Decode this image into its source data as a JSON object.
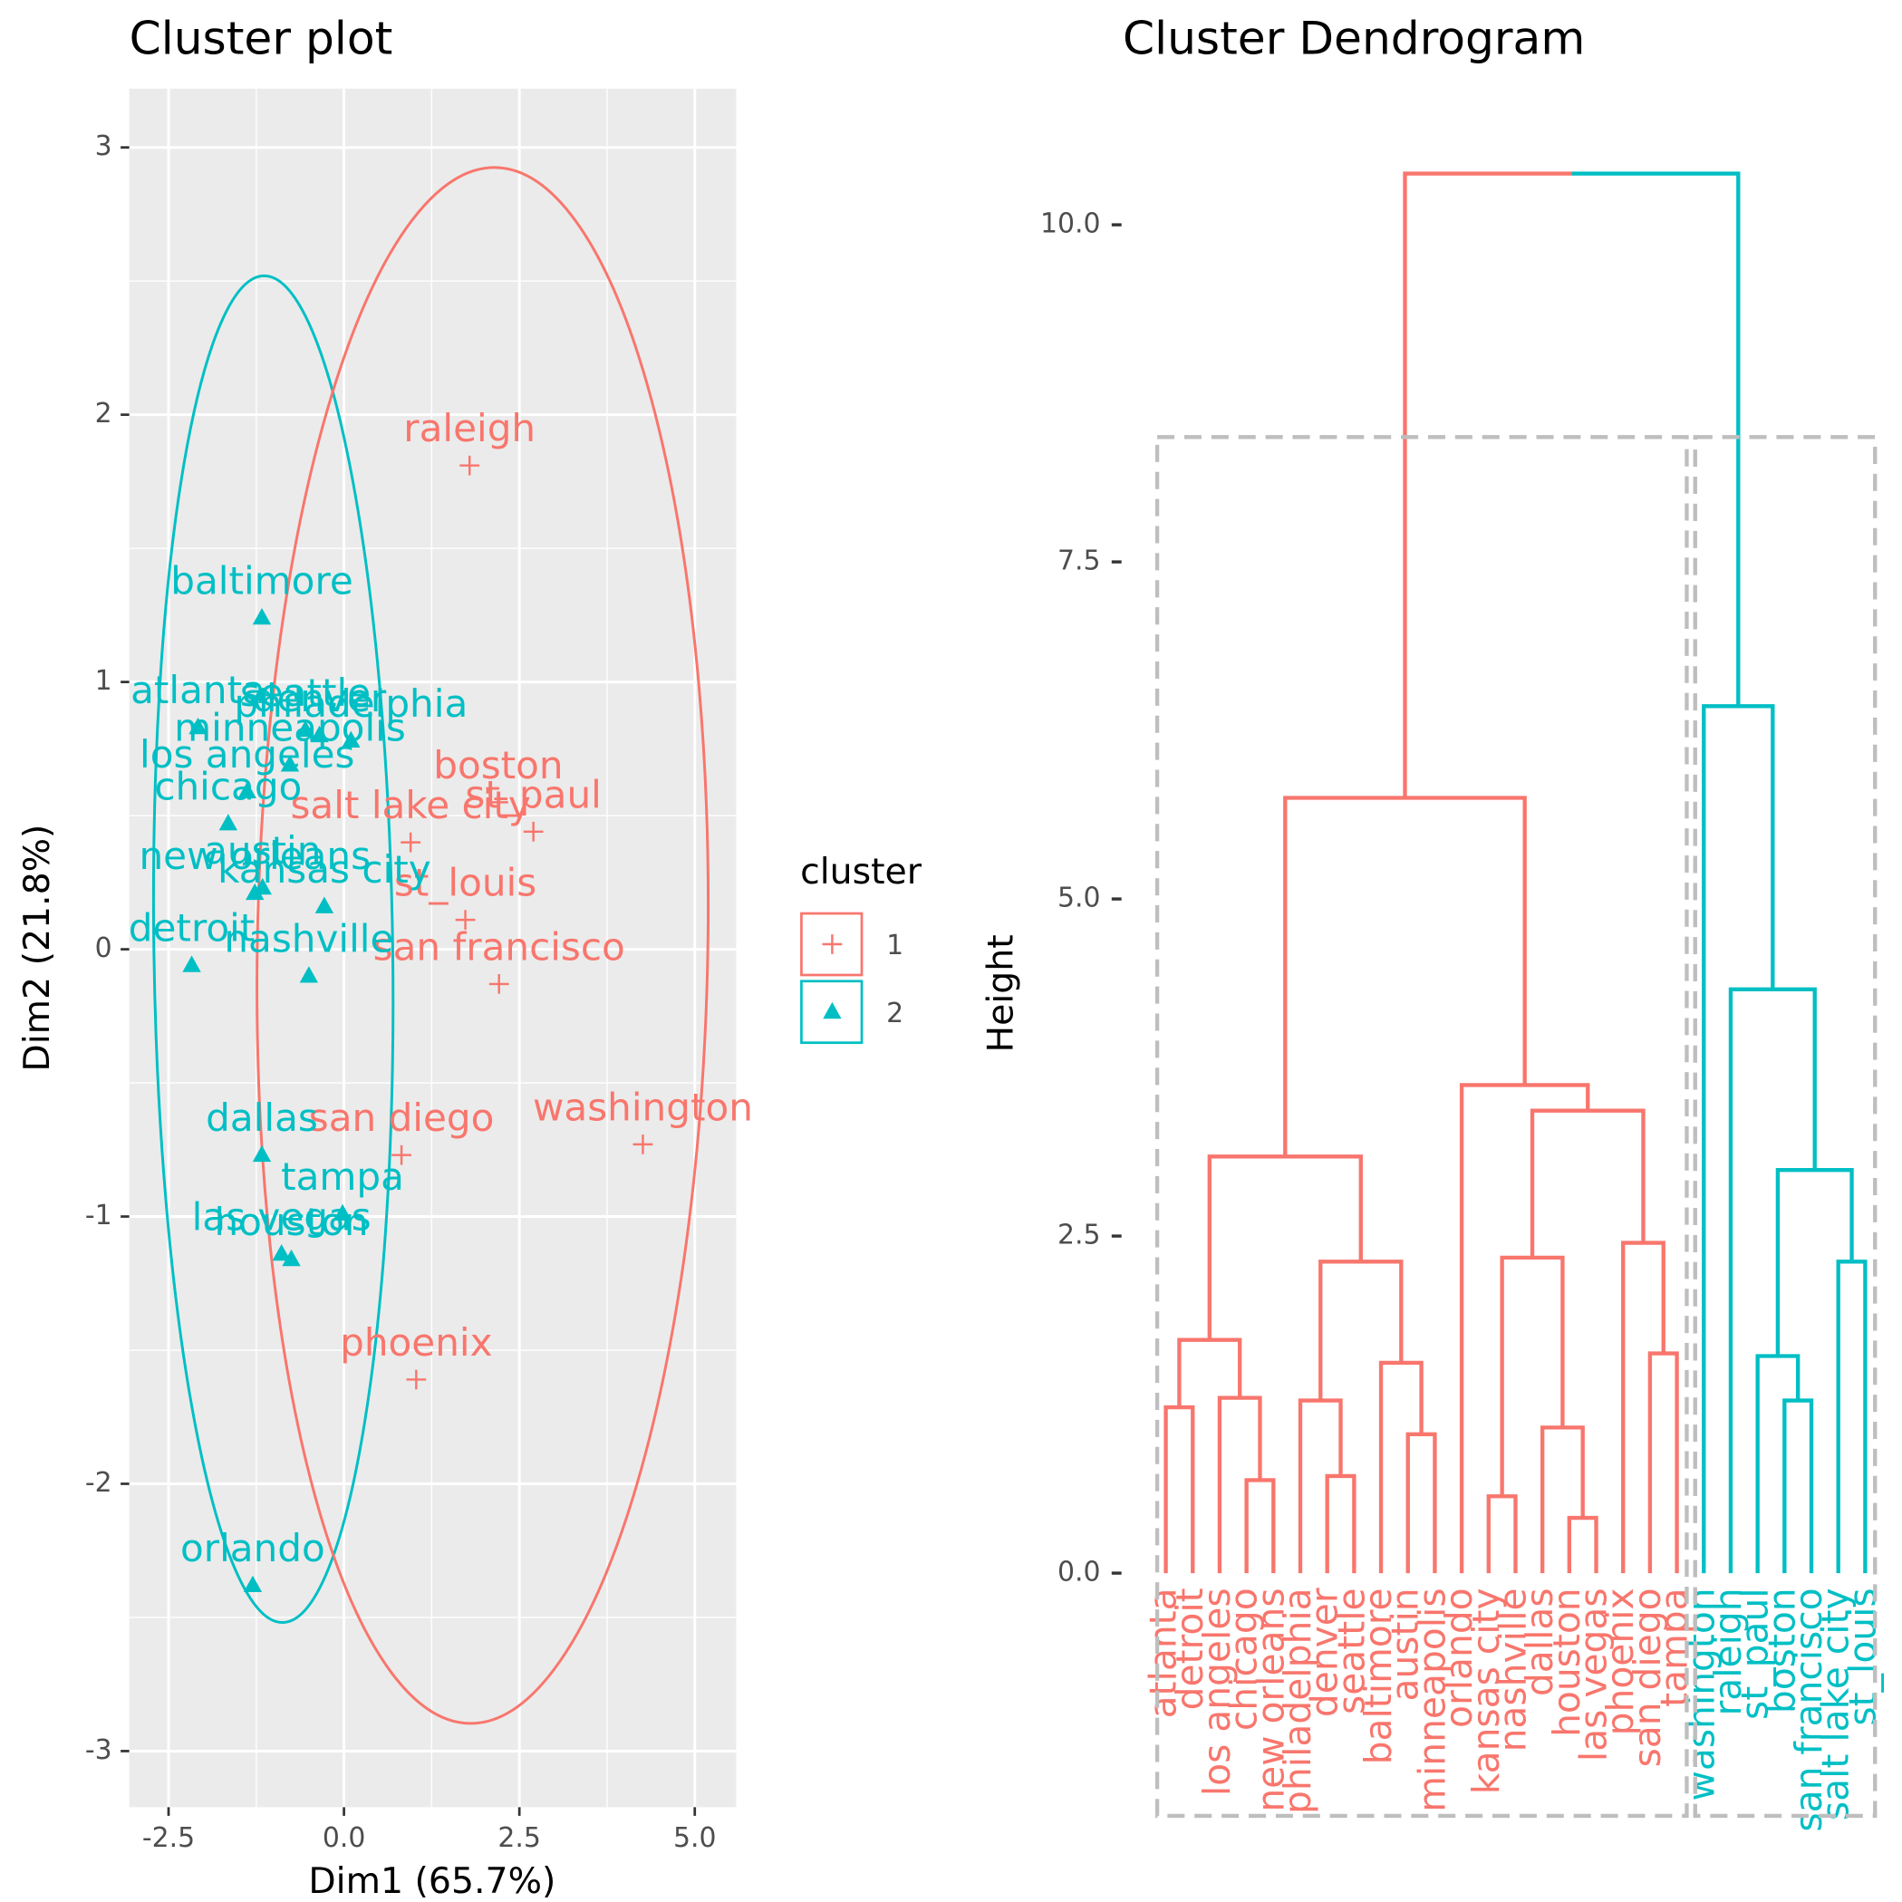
{
  "chart_data": [
    {
      "type": "scatter",
      "title": "Cluster plot",
      "x_label": "Dim1 (65.7%)",
      "y_label": "Dim2 (21.8%)",
      "legend_title": "cluster",
      "legend": "right",
      "grid": true,
      "xlim": [
        -3.06,
        5.59
      ],
      "ylim": [
        -3.21,
        3.22
      ],
      "xticks": [
        -2.5,
        {
          "value": 0,
          "label": "0.0"
        },
        2.5,
        {
          "value": 5,
          "label": "5.0"
        }
      ],
      "yticks": [
        3,
        2,
        1,
        0,
        -1,
        -2,
        -3
      ],
      "series": [
        {
          "name": "1",
          "color": "#F8766D",
          "marker": "plus",
          "labels": [
            "raleigh",
            "boston",
            "salt lake city",
            "st_paul",
            "st_louis",
            "san francisco",
            "san diego",
            "washington",
            "phoenix"
          ],
          "x": [
            1.79,
            2.2,
            0.95,
            2.7,
            1.73,
            2.21,
            0.82,
            4.26,
            1.03
          ],
          "values": [
            1.81,
            0.55,
            0.4,
            0.44,
            0.11,
            -0.13,
            -0.77,
            -0.73,
            -1.61
          ]
        },
        {
          "name": "2",
          "color": "#00BFC4",
          "marker": "triangle",
          "labels": [
            "baltimore",
            "atlanta",
            "philadelphia",
            "denver",
            "seattle",
            "minneapolis",
            "los angeles",
            "chicago",
            "new orleans",
            "austin",
            "kansas city",
            "nashville",
            "detroit",
            "dallas",
            "tampa",
            "las vegas",
            "houston",
            "orlando"
          ],
          "x": [
            -1.17,
            -2.08,
            0.1,
            -0.35,
            -0.55,
            -0.77,
            -1.38,
            -1.65,
            -1.27,
            -1.16,
            -0.28,
            -0.5,
            -2.17,
            -1.17,
            -0.02,
            -0.89,
            -0.75,
            -1.3
          ],
          "values": [
            1.24,
            0.83,
            0.78,
            0.8,
            0.82,
            0.69,
            0.59,
            0.47,
            0.21,
            0.23,
            0.16,
            -0.1,
            -0.06,
            -0.77,
            -0.99,
            -1.14,
            -1.16,
            -2.38
          ]
        }
      ]
    },
    {
      "type": "dendrogram",
      "title": "Cluster Dendrogram",
      "y_label": "Height",
      "ylim": [
        -1.8,
        11.01
      ],
      "yticks": [
        {
          "value": 0,
          "label": "0.0"
        },
        2.5,
        {
          "value": 5,
          "label": "5.0"
        },
        7.5,
        {
          "value": 10,
          "label": "10.0"
        }
      ],
      "height": 10.38,
      "clusters": [
        {
          "color": "#F8766D",
          "tree": {
            "height": 5.75,
            "children": [
              {
                "height": 3.09,
                "children": [
                  {
                    "height": 1.73,
                    "children": [
                      {
                        "height": 1.23,
                        "children": [
                          "atlanta",
                          "detroit"
                        ]
                      },
                      {
                        "height": 1.3,
                        "children": [
                          "los angeles",
                          {
                            "height": 0.69,
                            "children": [
                              "chicago",
                              "new orleans"
                            ]
                          }
                        ]
                      }
                    ]
                  },
                  {
                    "height": 2.31,
                    "children": [
                      {
                        "height": 1.28,
                        "children": [
                          "philadelphia",
                          {
                            "height": 0.72,
                            "children": [
                              "denver",
                              "seattle"
                            ]
                          }
                        ]
                      },
                      {
                        "height": 1.56,
                        "children": [
                          "baltimore",
                          {
                            "height": 1.03,
                            "children": [
                              "austin",
                              "minneapolis"
                            ]
                          }
                        ]
                      }
                    ]
                  }
                ]
              },
              {
                "height": 3.62,
                "children": [
                  "orlando",
                  {
                    "height": 3.43,
                    "children": [
                      {
                        "height": 2.34,
                        "children": [
                          {
                            "height": 0.57,
                            "children": [
                              "kansas city",
                              "nashville"
                            ]
                          },
                          {
                            "height": 1.08,
                            "children": [
                              "dallas",
                              {
                                "height": 0.41,
                                "children": [
                                  "houston",
                                  "las vegas"
                                ]
                              }
                            ]
                          }
                        ]
                      },
                      {
                        "height": 2.45,
                        "children": [
                          "phoenix",
                          {
                            "height": 1.63,
                            "children": [
                              "san diego",
                              "tampa"
                            ]
                          }
                        ]
                      }
                    ]
                  }
                ]
              }
            ]
          }
        },
        {
          "color": "#00BFC4",
          "tree": {
            "height": 6.43,
            "children": [
              "washington",
              {
                "height": 4.33,
                "children": [
                  "raleigh",
                  {
                    "height": 2.99,
                    "children": [
                      {
                        "height": 1.61,
                        "children": [
                          "st_paul",
                          {
                            "height": 1.28,
                            "children": [
                              "boston",
                              "san francisco"
                            ]
                          }
                        ]
                      },
                      {
                        "height": 2.31,
                        "children": [
                          "salt lake city",
                          "st_louis"
                        ]
                      }
                    ]
                  }
                ]
              }
            ]
          }
        }
      ]
    }
  ]
}
